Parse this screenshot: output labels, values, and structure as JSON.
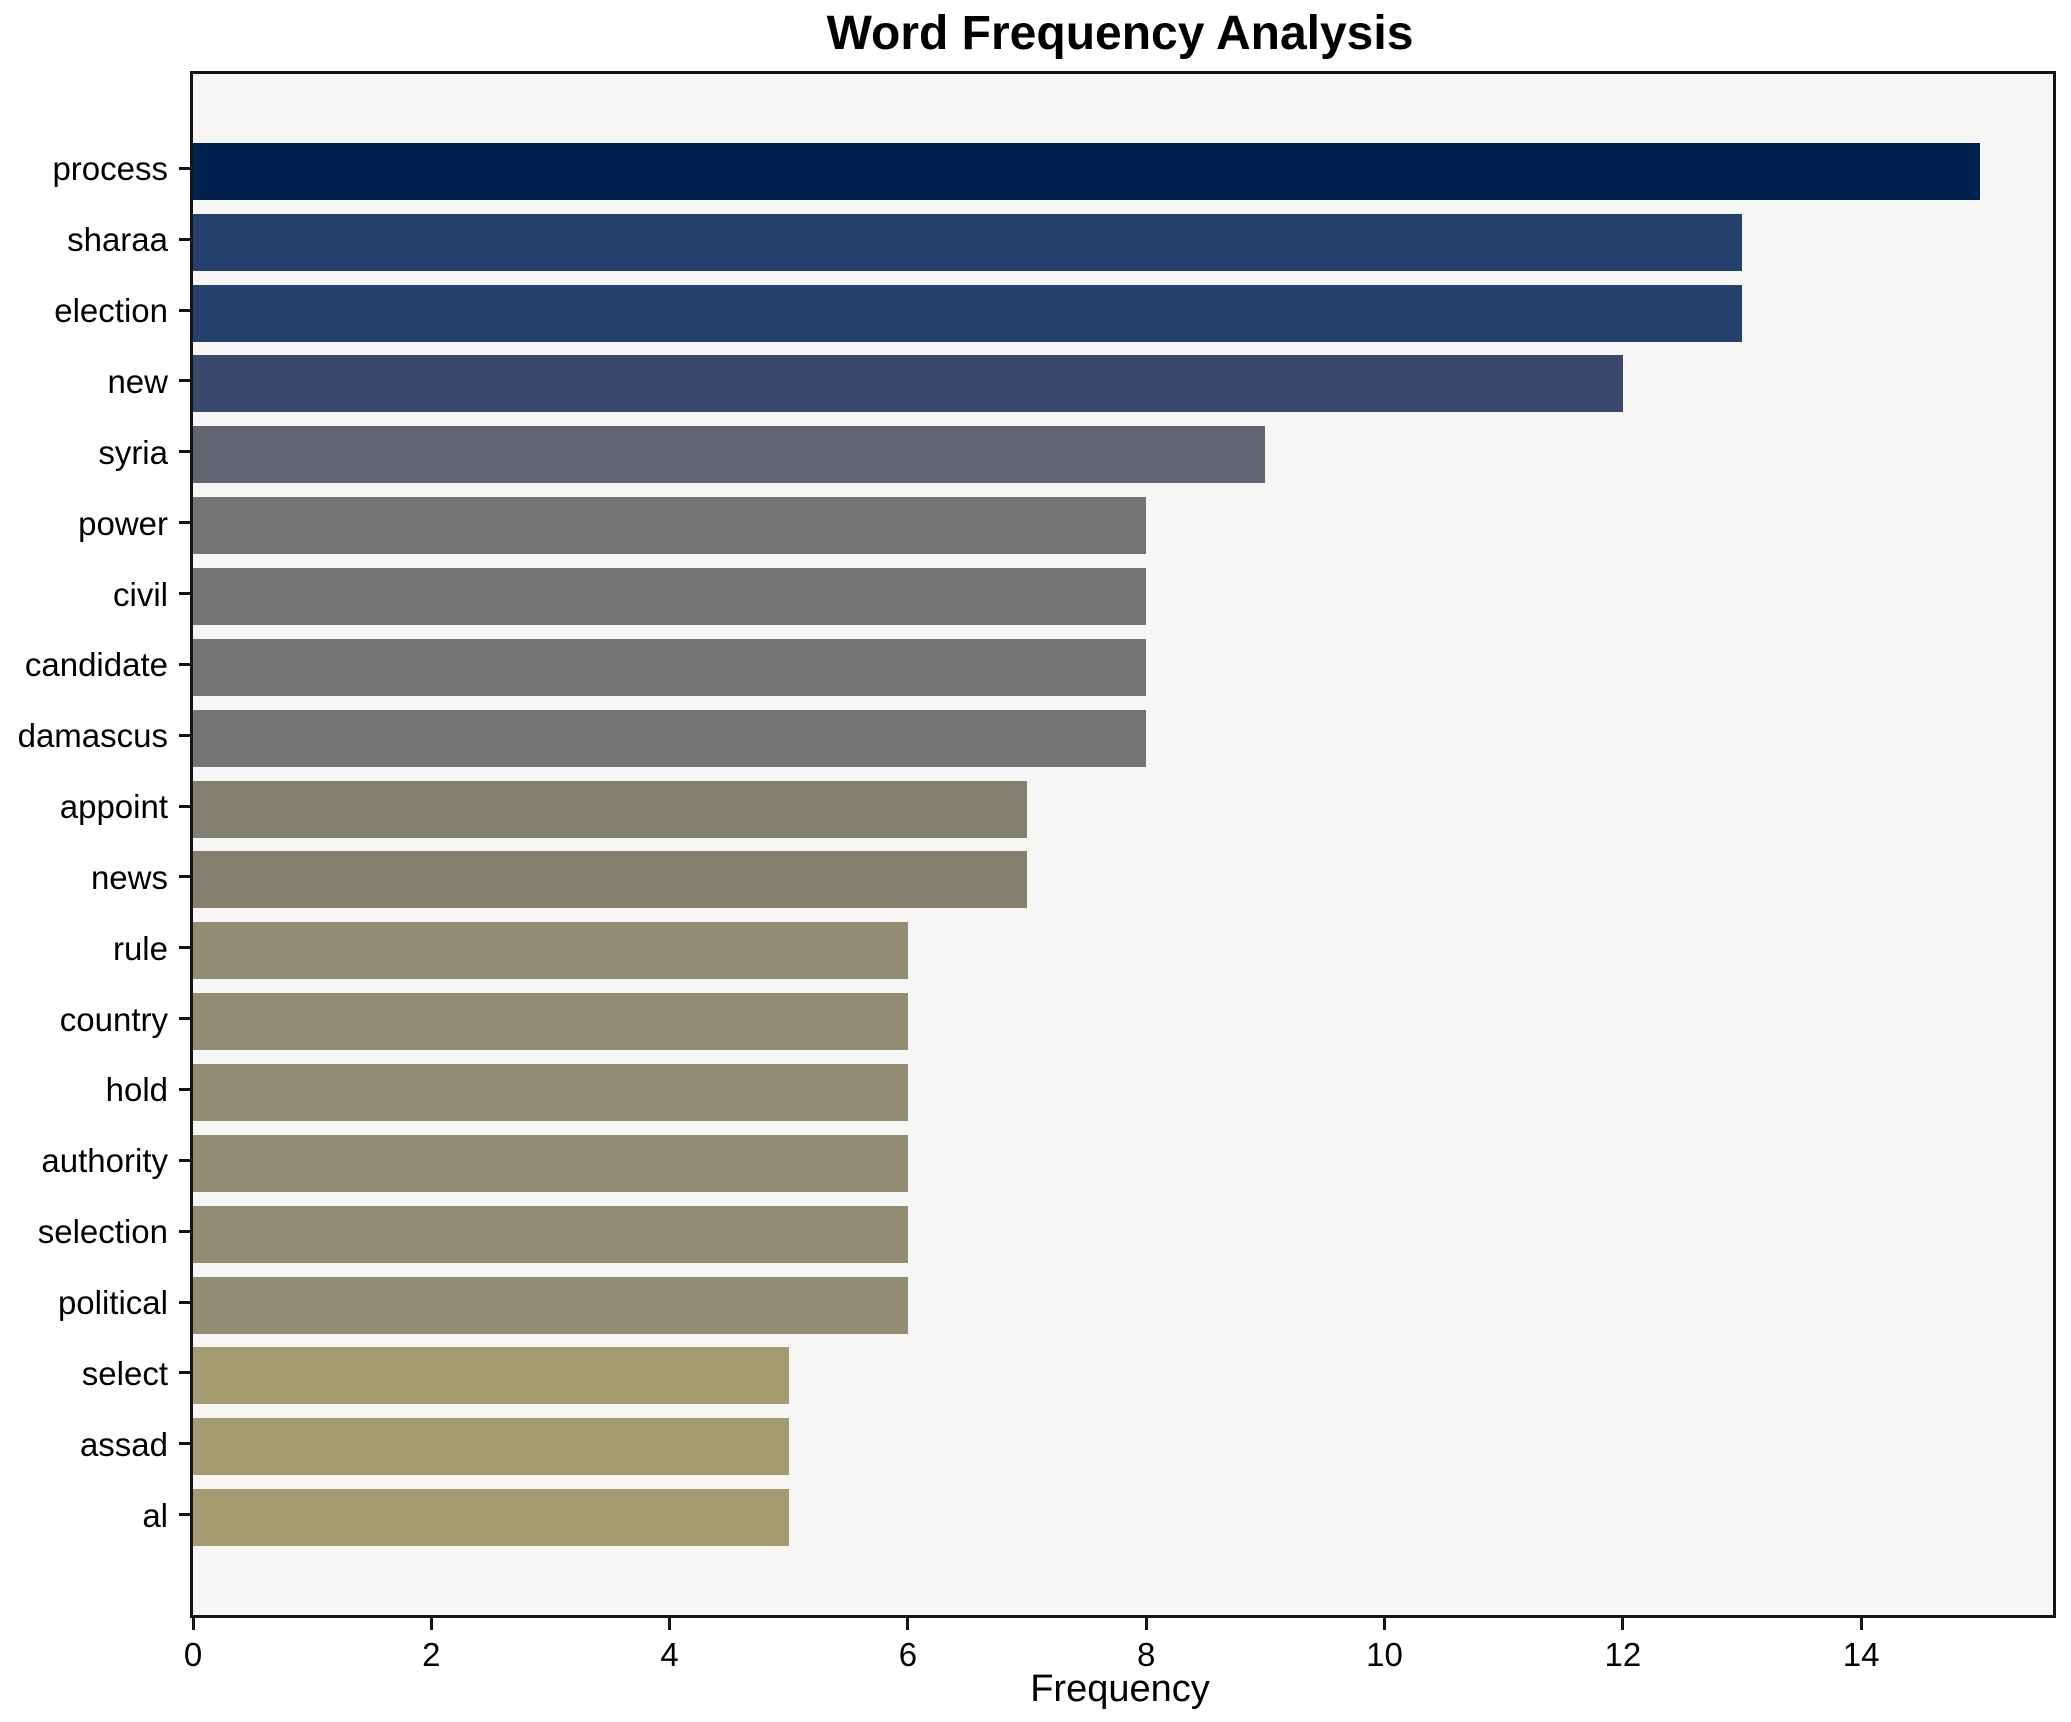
{
  "chart_data": {
    "type": "bar",
    "orientation": "horizontal",
    "title": "Word Frequency Analysis",
    "xlabel": "Frequency",
    "ylabel": "",
    "categories": [
      "process",
      "sharaa",
      "election",
      "new",
      "syria",
      "power",
      "civil",
      "candidate",
      "damascus",
      "appoint",
      "news",
      "rule",
      "country",
      "hold",
      "authority",
      "selection",
      "political",
      "select",
      "assad",
      "al"
    ],
    "values": [
      15,
      13,
      13,
      12,
      9,
      8,
      8,
      8,
      8,
      7,
      7,
      6,
      6,
      6,
      6,
      6,
      6,
      5,
      5,
      5
    ],
    "bar_colors": [
      "#00224e",
      "#24416e",
      "#24416e",
      "#3a486e",
      "#606571",
      "#747474",
      "#747474",
      "#747474",
      "#747474",
      "#84806f",
      "#84806f",
      "#928c73",
      "#928c73",
      "#928c73",
      "#928c73",
      "#928c73",
      "#928c73",
      "#a49c70",
      "#a49c70",
      "#a49c70"
    ],
    "x_ticks": [
      0,
      2,
      4,
      6,
      8,
      10,
      12,
      14
    ],
    "xlim": [
      0,
      15.61
    ],
    "grid": false,
    "legend": null,
    "plot_background": "#f6f6f5",
    "figure_background": "#ffffff",
    "spine_color": "#141414"
  }
}
